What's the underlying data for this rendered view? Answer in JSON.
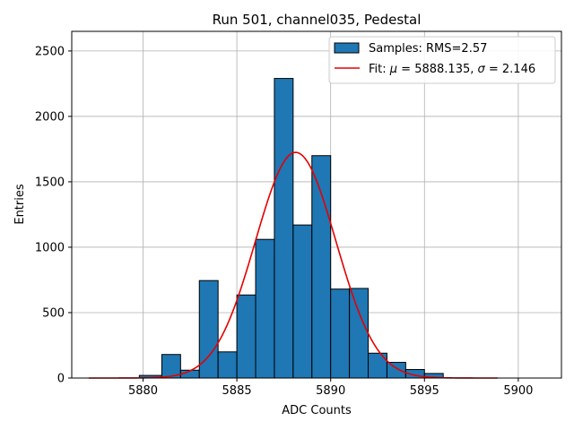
{
  "chart_data": {
    "type": "bar",
    "title": "Run 501, channel035, Pedestal",
    "xlabel": "ADC Counts",
    "ylabel": "Entries",
    "xlim": [
      5876.2,
      5902.3
    ],
    "ylim": [
      0,
      2650
    ],
    "xticks": [
      5880,
      5885,
      5890,
      5895,
      5900
    ],
    "yticks": [
      0,
      500,
      1000,
      1500,
      2000,
      2500
    ],
    "grid": true,
    "legend_position": "top-right",
    "histogram": {
      "name": "Samples: RMS=2.57",
      "color": "#1f77b4",
      "bin_edges": [
        5879.8,
        5881.0,
        5882.0,
        5883.0,
        5884.0,
        5885.0,
        5886.0,
        5887.0,
        5888.0,
        5889.0,
        5890.0,
        5891.0,
        5892.0,
        5893.0,
        5894.0,
        5895.0,
        5896.0
      ],
      "counts": [
        20,
        180,
        60,
        745,
        200,
        635,
        1060,
        2290,
        1170,
        1700,
        680,
        685,
        190,
        120,
        65,
        35
      ]
    },
    "fit": {
      "name": "Fit: μ = 5888.135, σ = 2.146",
      "color": "#e50000",
      "mu": 5888.135,
      "sigma": 2.146,
      "amplitude": 1725,
      "x_range": [
        5877.1,
        5898.9
      ]
    },
    "legend": {
      "hist_label": "Samples: RMS=2.57",
      "fit_prefix": "Fit: ",
      "mu_symbol": "μ",
      "mu_text": " = 5888.135, ",
      "sigma_symbol": "σ",
      "sigma_text": " = 2.146"
    }
  }
}
